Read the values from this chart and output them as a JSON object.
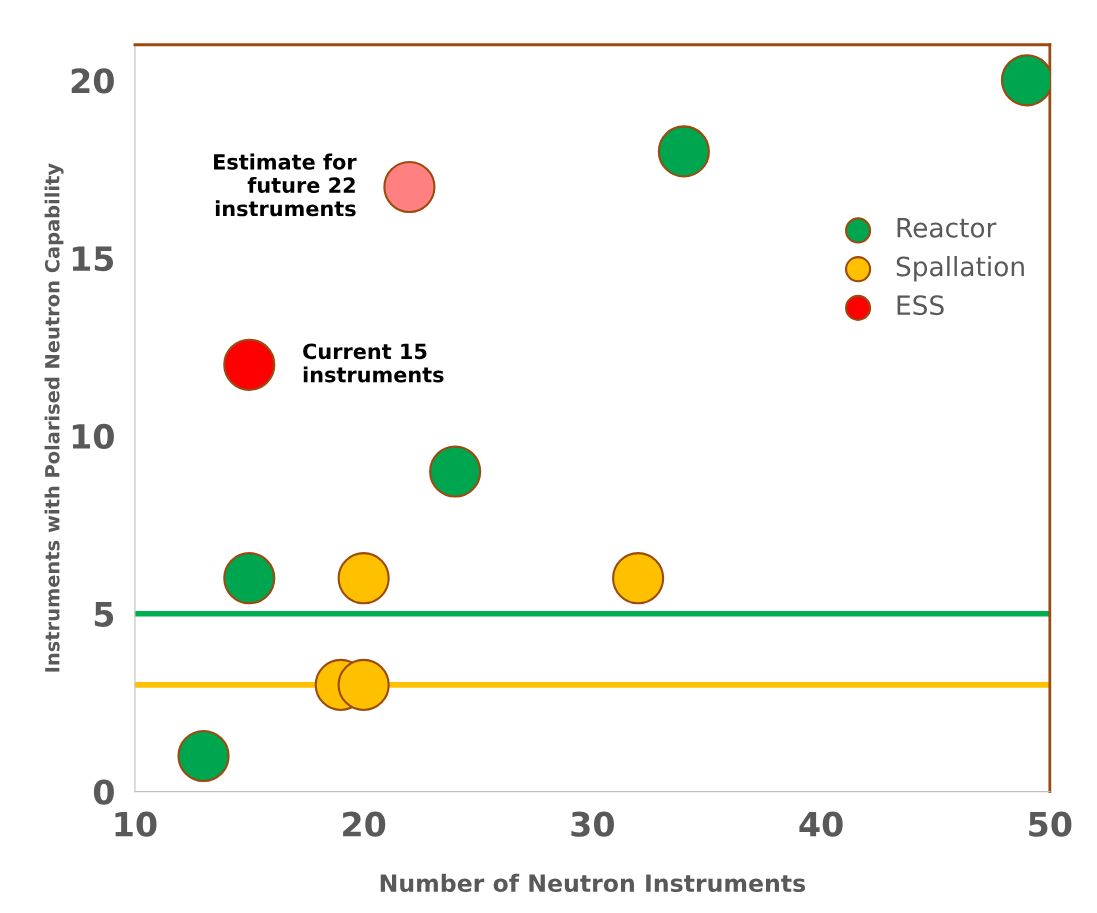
{
  "chart_data": {
    "type": "scatter",
    "xlabel": "Number of Neutron Instruments",
    "ylabel": "Instruments with Polarised Neutron Capability",
    "xlim": [
      10,
      50
    ],
    "xticks": [
      10,
      20,
      30,
      40,
      50
    ],
    "ylim": [
      0,
      21
    ],
    "yticks": [
      0,
      5,
      10,
      15,
      20
    ],
    "series": [
      {
        "name": "Reactor",
        "color": "#00a550",
        "x": [
          13,
          15,
          24,
          34,
          49
        ],
        "values": [
          1,
          6,
          9,
          18,
          20
        ]
      },
      {
        "name": "Spallation",
        "color": "#ffc000",
        "x": [
          19,
          20,
          20,
          32
        ],
        "values": [
          3,
          3,
          6,
          6
        ]
      },
      {
        "name": "ESS",
        "color": "#ff0000",
        "colors": [
          "#ff0000",
          "#ff8080"
        ],
        "x": [
          15,
          22
        ],
        "values": [
          12,
          17
        ]
      }
    ],
    "ref_lines": [
      {
        "axis": "y",
        "value": 5,
        "color": "#00b050"
      },
      {
        "axis": "y",
        "value": 3,
        "color": "#ffc000"
      }
    ],
    "annotations": [
      {
        "text": "Estimate for\nfuture 22\ninstruments",
        "x": 22,
        "y": 17
      },
      {
        "text": "Current 15\ninstruments",
        "x": 15,
        "y": 12
      }
    ],
    "marker": "circle",
    "grid": false,
    "legend": "right"
  }
}
